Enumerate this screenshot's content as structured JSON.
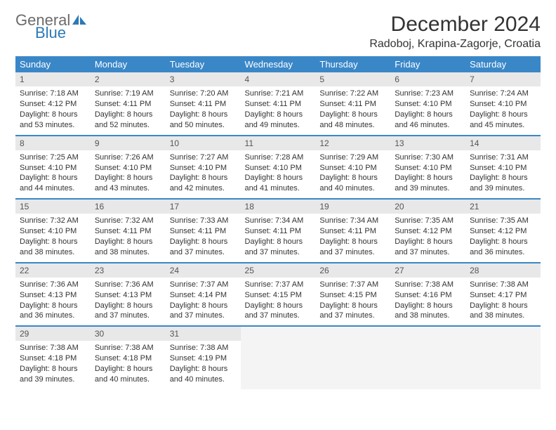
{
  "logo": {
    "part1": "General",
    "part2": "Blue"
  },
  "title": "December 2024",
  "location": "Radoboj, Krapina-Zagorje, Croatia",
  "colors": {
    "header_bg": "#3a87c8",
    "header_fg": "#ffffff",
    "daynum_bg": "#e8e8e8",
    "border": "#3a87c8",
    "empty_bg": "#f4f4f4",
    "logo_gray": "#6b6b6b",
    "logo_blue": "#2a79b8"
  },
  "weekdays": [
    "Sunday",
    "Monday",
    "Tuesday",
    "Wednesday",
    "Thursday",
    "Friday",
    "Saturday"
  ],
  "weeks": [
    [
      {
        "n": "1",
        "sr": "7:18 AM",
        "ss": "4:12 PM",
        "dl": "8 hours and 53 minutes."
      },
      {
        "n": "2",
        "sr": "7:19 AM",
        "ss": "4:11 PM",
        "dl": "8 hours and 52 minutes."
      },
      {
        "n": "3",
        "sr": "7:20 AM",
        "ss": "4:11 PM",
        "dl": "8 hours and 50 minutes."
      },
      {
        "n": "4",
        "sr": "7:21 AM",
        "ss": "4:11 PM",
        "dl": "8 hours and 49 minutes."
      },
      {
        "n": "5",
        "sr": "7:22 AM",
        "ss": "4:11 PM",
        "dl": "8 hours and 48 minutes."
      },
      {
        "n": "6",
        "sr": "7:23 AM",
        "ss": "4:10 PM",
        "dl": "8 hours and 46 minutes."
      },
      {
        "n": "7",
        "sr": "7:24 AM",
        "ss": "4:10 PM",
        "dl": "8 hours and 45 minutes."
      }
    ],
    [
      {
        "n": "8",
        "sr": "7:25 AM",
        "ss": "4:10 PM",
        "dl": "8 hours and 44 minutes."
      },
      {
        "n": "9",
        "sr": "7:26 AM",
        "ss": "4:10 PM",
        "dl": "8 hours and 43 minutes."
      },
      {
        "n": "10",
        "sr": "7:27 AM",
        "ss": "4:10 PM",
        "dl": "8 hours and 42 minutes."
      },
      {
        "n": "11",
        "sr": "7:28 AM",
        "ss": "4:10 PM",
        "dl": "8 hours and 41 minutes."
      },
      {
        "n": "12",
        "sr": "7:29 AM",
        "ss": "4:10 PM",
        "dl": "8 hours and 40 minutes."
      },
      {
        "n": "13",
        "sr": "7:30 AM",
        "ss": "4:10 PM",
        "dl": "8 hours and 39 minutes."
      },
      {
        "n": "14",
        "sr": "7:31 AM",
        "ss": "4:10 PM",
        "dl": "8 hours and 39 minutes."
      }
    ],
    [
      {
        "n": "15",
        "sr": "7:32 AM",
        "ss": "4:10 PM",
        "dl": "8 hours and 38 minutes."
      },
      {
        "n": "16",
        "sr": "7:32 AM",
        "ss": "4:11 PM",
        "dl": "8 hours and 38 minutes."
      },
      {
        "n": "17",
        "sr": "7:33 AM",
        "ss": "4:11 PM",
        "dl": "8 hours and 37 minutes."
      },
      {
        "n": "18",
        "sr": "7:34 AM",
        "ss": "4:11 PM",
        "dl": "8 hours and 37 minutes."
      },
      {
        "n": "19",
        "sr": "7:34 AM",
        "ss": "4:11 PM",
        "dl": "8 hours and 37 minutes."
      },
      {
        "n": "20",
        "sr": "7:35 AM",
        "ss": "4:12 PM",
        "dl": "8 hours and 37 minutes."
      },
      {
        "n": "21",
        "sr": "7:35 AM",
        "ss": "4:12 PM",
        "dl": "8 hours and 36 minutes."
      }
    ],
    [
      {
        "n": "22",
        "sr": "7:36 AM",
        "ss": "4:13 PM",
        "dl": "8 hours and 36 minutes."
      },
      {
        "n": "23",
        "sr": "7:36 AM",
        "ss": "4:13 PM",
        "dl": "8 hours and 37 minutes."
      },
      {
        "n": "24",
        "sr": "7:37 AM",
        "ss": "4:14 PM",
        "dl": "8 hours and 37 minutes."
      },
      {
        "n": "25",
        "sr": "7:37 AM",
        "ss": "4:15 PM",
        "dl": "8 hours and 37 minutes."
      },
      {
        "n": "26",
        "sr": "7:37 AM",
        "ss": "4:15 PM",
        "dl": "8 hours and 37 minutes."
      },
      {
        "n": "27",
        "sr": "7:38 AM",
        "ss": "4:16 PM",
        "dl": "8 hours and 38 minutes."
      },
      {
        "n": "28",
        "sr": "7:38 AM",
        "ss": "4:17 PM",
        "dl": "8 hours and 38 minutes."
      }
    ],
    [
      {
        "n": "29",
        "sr": "7:38 AM",
        "ss": "4:18 PM",
        "dl": "8 hours and 39 minutes."
      },
      {
        "n": "30",
        "sr": "7:38 AM",
        "ss": "4:18 PM",
        "dl": "8 hours and 40 minutes."
      },
      {
        "n": "31",
        "sr": "7:38 AM",
        "ss": "4:19 PM",
        "dl": "8 hours and 40 minutes."
      },
      null,
      null,
      null,
      null
    ]
  ],
  "labels": {
    "sunrise": "Sunrise:",
    "sunset": "Sunset:",
    "daylight": "Daylight:"
  }
}
